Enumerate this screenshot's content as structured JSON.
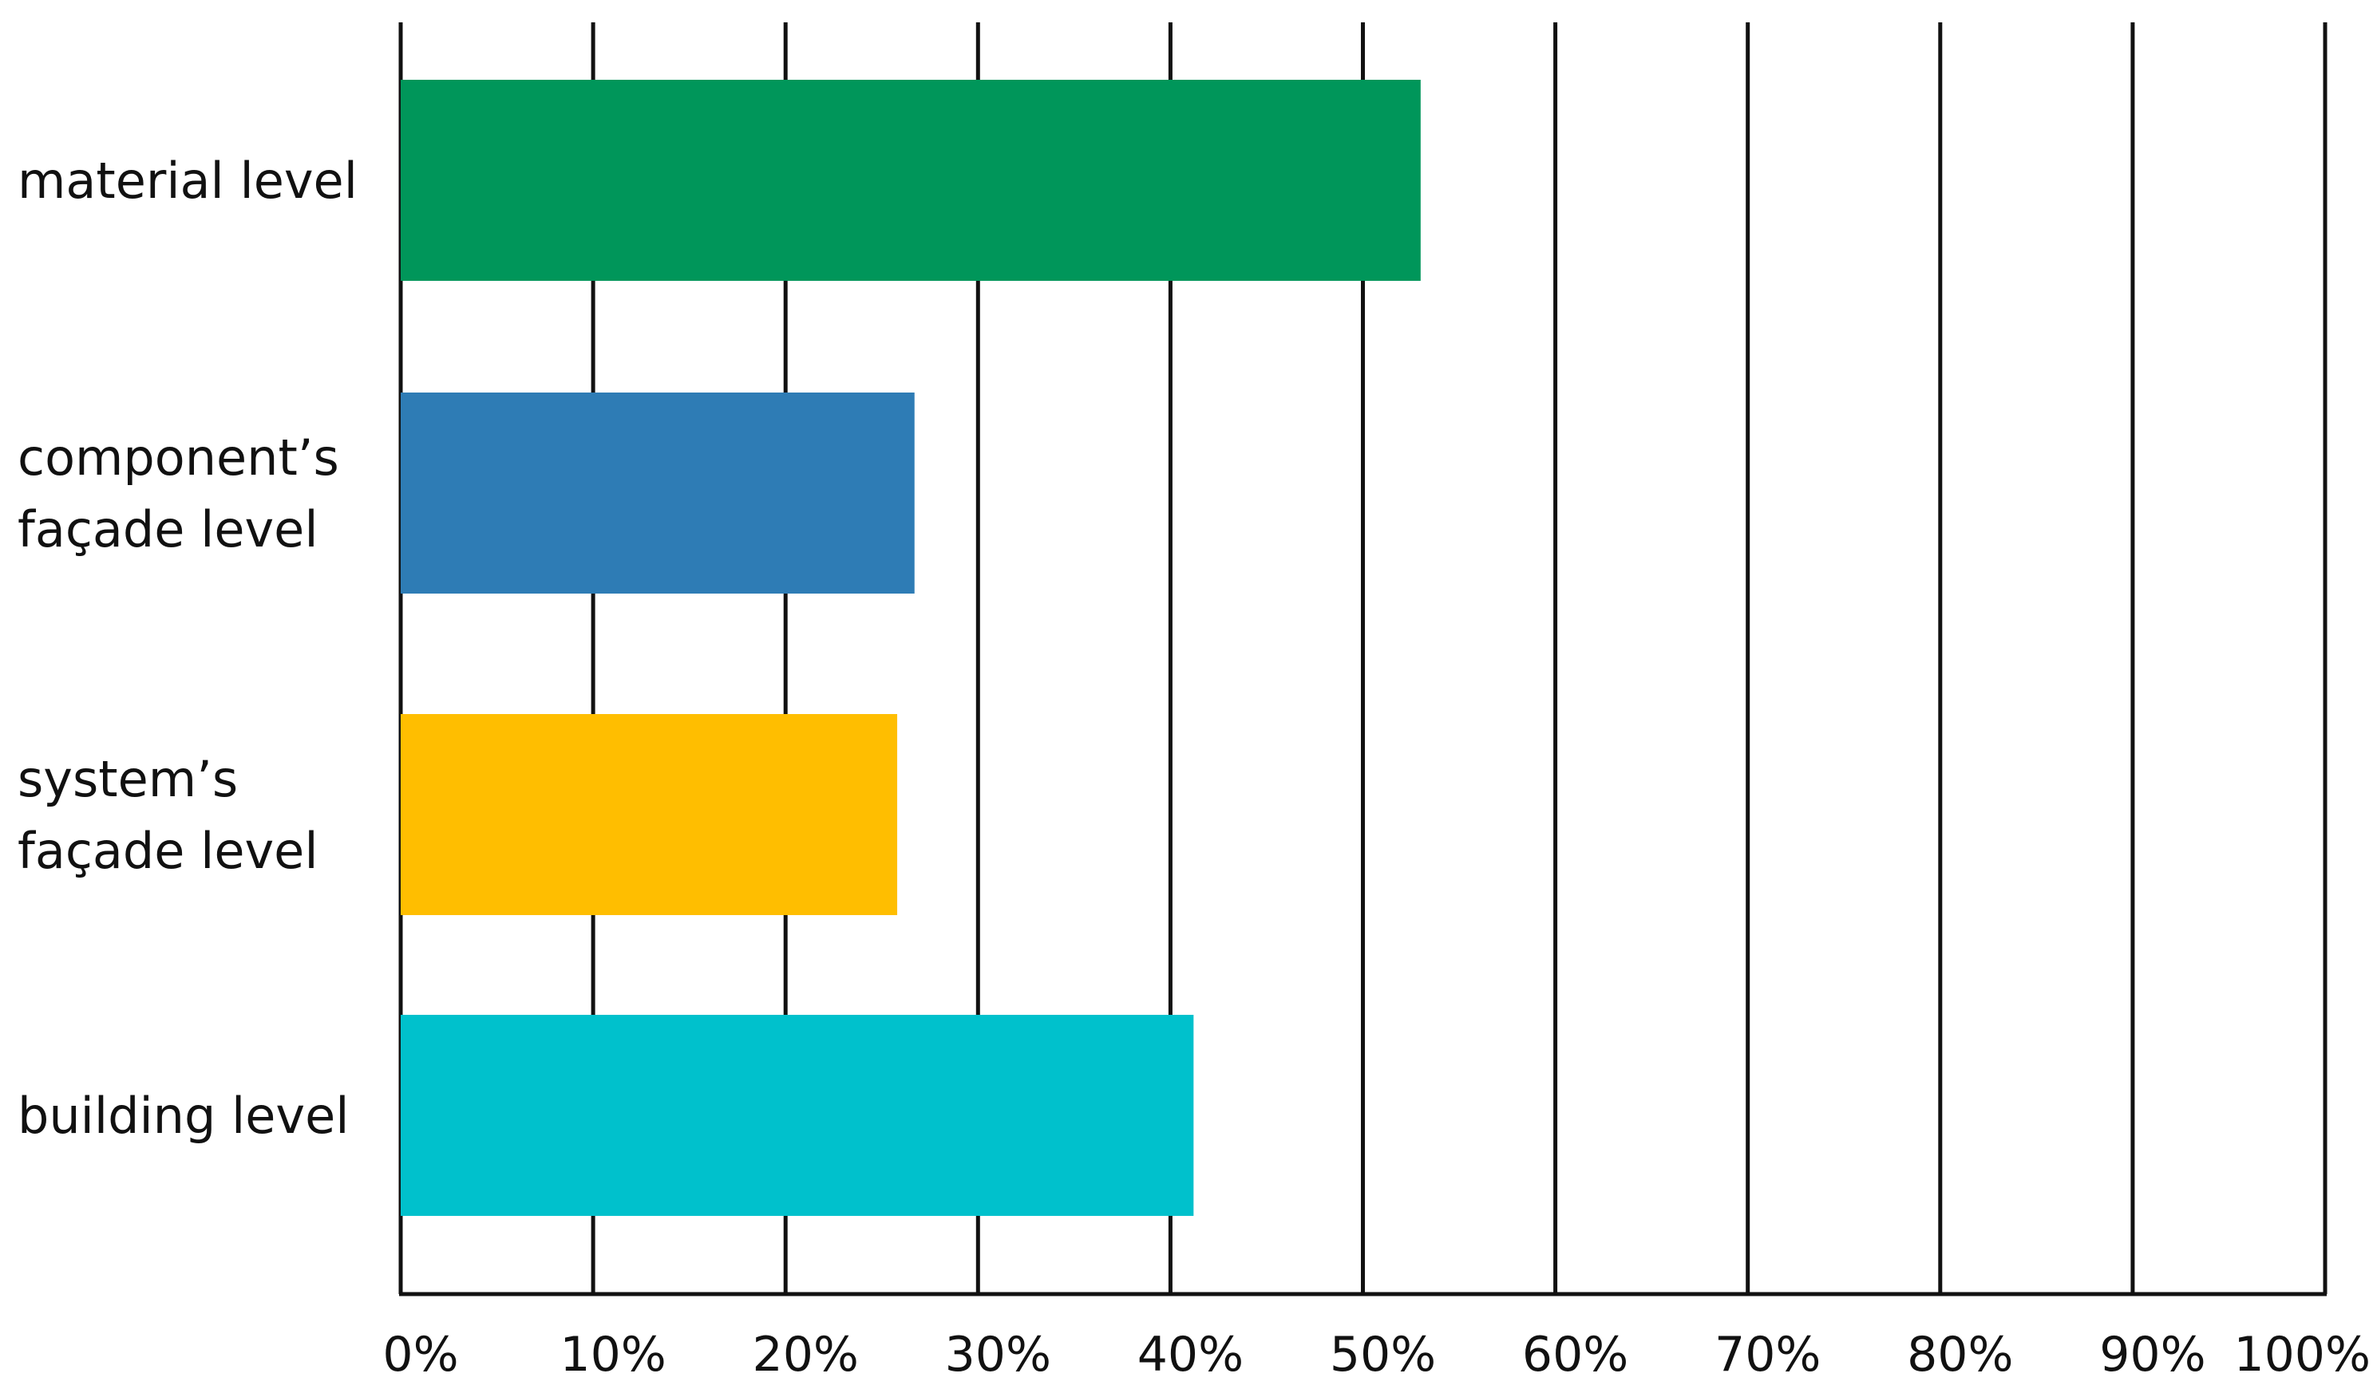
{
  "chart_data": {
    "type": "bar",
    "orientation": "horizontal",
    "title": "",
    "xlabel": "",
    "ylabel": "",
    "categories": [
      [
        "material level"
      ],
      [
        "component’s",
        "façade level"
      ],
      [
        "system’s",
        "façade level"
      ],
      [
        "building level"
      ]
    ],
    "values": [
      53,
      26.7,
      25.8,
      41.2
    ],
    "colors": [
      "#00965a",
      "#2e7cb5",
      "#ffbe00",
      "#00c1cc"
    ],
    "xlim": [
      0,
      100
    ],
    "xticks": [
      0,
      10,
      20,
      30,
      40,
      50,
      60,
      70,
      80,
      90,
      100
    ],
    "xtick_labels": [
      "0%",
      "10%",
      "20%",
      "30%",
      "40%",
      "50%",
      "60%",
      "70%",
      "80%",
      "90%",
      "100%"
    ],
    "grid": "vertical",
    "legend": "none"
  }
}
